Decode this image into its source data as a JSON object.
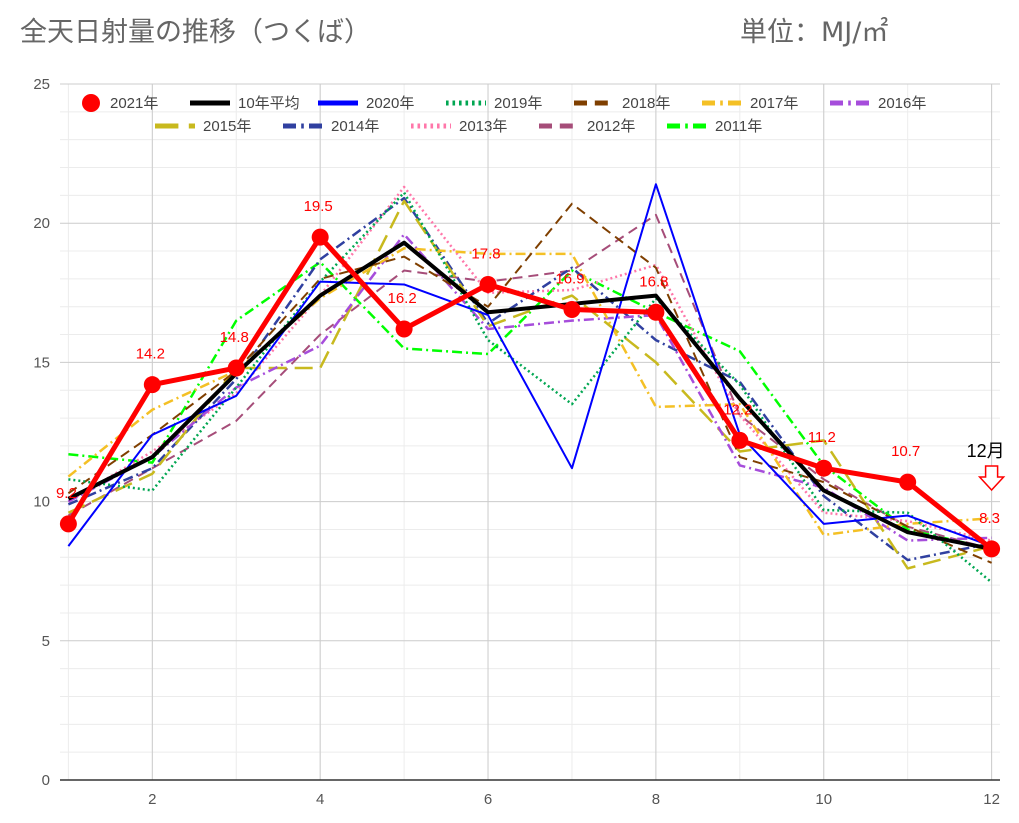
{
  "header": {
    "title": "全天日射量の推移（つくば）",
    "unit_label": "単位：MJ/㎡"
  },
  "chart_data": {
    "type": "line",
    "title": "全天日射量の推移（つくば）",
    "xlabel": "",
    "ylabel": "",
    "x": [
      1,
      2,
      3,
      4,
      5,
      6,
      7,
      8,
      9,
      10,
      11,
      12
    ],
    "xticks": [
      2,
      4,
      6,
      8,
      10,
      12
    ],
    "yticks": [
      0,
      5,
      10,
      15,
      20,
      25
    ],
    "xlim": [
      0.9,
      12.1
    ],
    "ylim": [
      0,
      25
    ],
    "grid": true,
    "legend_position": "top",
    "annotation": "12月",
    "series": [
      {
        "name": "2021年",
        "color": "#ff0000",
        "style": "solid-marker",
        "values": [
          9.2,
          14.2,
          14.8,
          19.5,
          16.2,
          17.8,
          16.9,
          16.8,
          12.2,
          11.2,
          10.7,
          8.3
        ],
        "labels": [
          "9.2",
          "14.2",
          "14.8",
          "19.5",
          "16.2",
          "17.8",
          "16.9",
          "16.8",
          "12.2",
          "11.2",
          "10.7",
          "8.3"
        ]
      },
      {
        "name": "10年平均",
        "color": "#000000",
        "style": "solid-thick",
        "values": [
          10.1,
          11.6,
          14.6,
          17.4,
          19.3,
          16.8,
          17.1,
          17.4,
          13.7,
          10.4,
          8.9,
          8.3
        ]
      },
      {
        "name": "2020年",
        "color": "#0000ff",
        "style": "solid",
        "values": [
          8.4,
          12.4,
          13.8,
          17.9,
          17.8,
          16.7,
          11.2,
          21.4,
          12.4,
          9.2,
          9.5,
          8.4
        ]
      },
      {
        "name": "2019年",
        "color": "#00a651",
        "style": "dotted",
        "values": [
          10.8,
          10.4,
          14.1,
          17.9,
          21.1,
          15.8,
          13.5,
          17.3,
          14.2,
          9.7,
          9.6,
          7.1
        ]
      },
      {
        "name": "2018年",
        "color": "#7f3f00",
        "style": "dashed",
        "values": [
          10.3,
          12.4,
          14.7,
          18.0,
          18.8,
          17.0,
          20.7,
          18.4,
          11.6,
          10.7,
          9.1,
          7.8
        ]
      },
      {
        "name": "2017年",
        "color": "#f4c025",
        "style": "dashdot",
        "values": [
          10.9,
          13.3,
          14.7,
          17.3,
          19.1,
          18.9,
          18.9,
          13.4,
          13.5,
          8.8,
          9.2,
          9.4
        ]
      },
      {
        "name": "2016年",
        "color": "#a64ddb",
        "style": "dashdot",
        "values": [
          10.0,
          11.6,
          14.1,
          15.6,
          19.6,
          16.2,
          16.5,
          16.7,
          11.3,
          10.5,
          8.6,
          8.7
        ]
      },
      {
        "name": "2015年",
        "color": "#c8b91e",
        "style": "longdash",
        "values": [
          9.6,
          11.0,
          14.8,
          14.8,
          20.8,
          16.3,
          17.4,
          15.0,
          11.8,
          12.2,
          7.6,
          8.4
        ]
      },
      {
        "name": "2014年",
        "color": "#3040a0",
        "style": "dashdot",
        "values": [
          9.9,
          11.2,
          14.4,
          18.7,
          20.9,
          16.4,
          18.4,
          15.8,
          14.3,
          10.2,
          7.9,
          8.5
        ]
      },
      {
        "name": "2013年",
        "color": "#ff77aa",
        "style": "dotted",
        "values": [
          10.0,
          11.8,
          13.9,
          17.4,
          21.3,
          17.5,
          17.6,
          18.5,
          13.1,
          9.6,
          9.3,
          8.6
        ]
      },
      {
        "name": "2012年",
        "color": "#a64d79",
        "style": "dashed",
        "values": [
          9.5,
          11.2,
          12.9,
          16.0,
          18.3,
          17.9,
          18.3,
          20.3,
          13.1,
          10.8,
          9.1,
          8.3
        ]
      },
      {
        "name": "2011年",
        "color": "#00ff00",
        "style": "dashdot",
        "values": [
          11.7,
          11.4,
          16.5,
          18.6,
          15.5,
          15.3,
          18.3,
          16.8,
          15.4,
          11.3,
          9.0,
          8.3
        ]
      }
    ]
  }
}
